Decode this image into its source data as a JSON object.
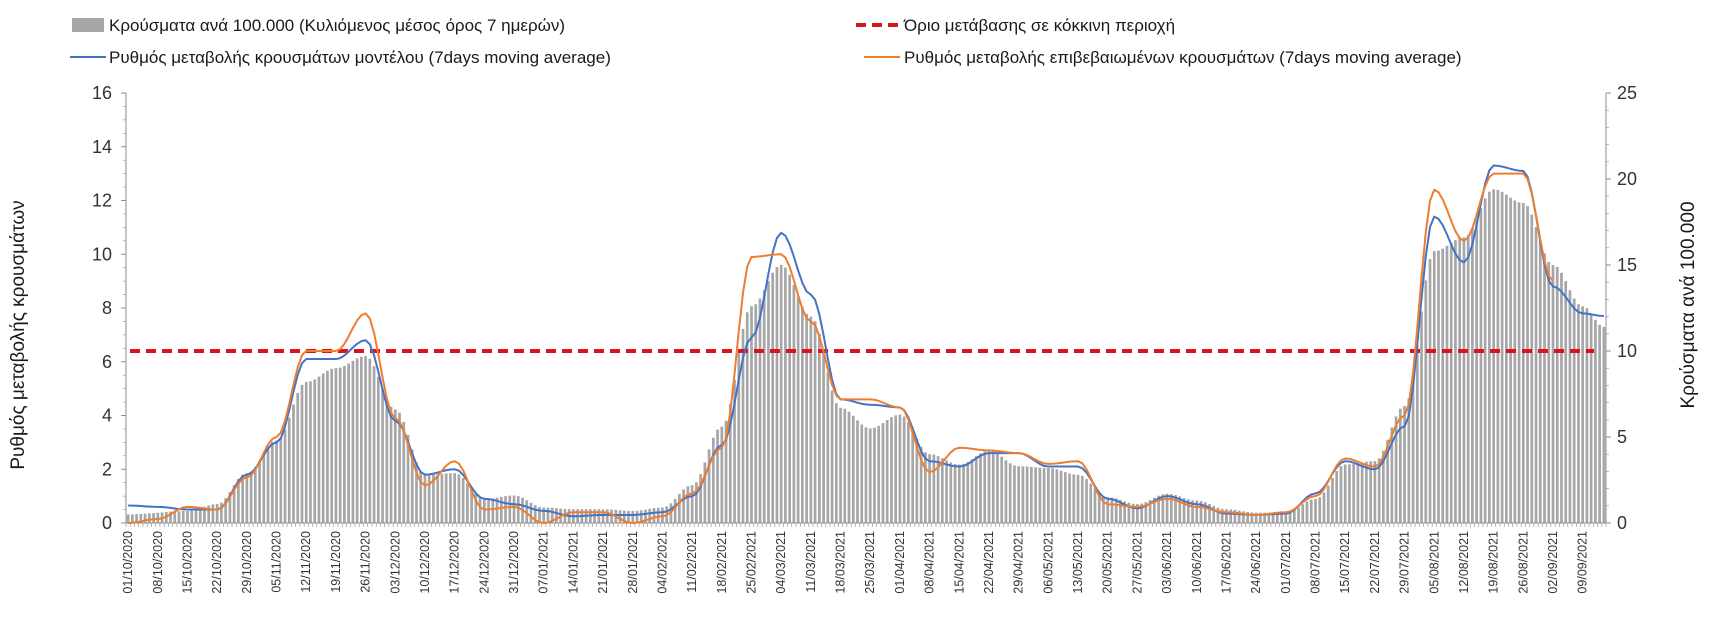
{
  "chart_data": {
    "type": "combo",
    "legend": {
      "placement": "top",
      "entries": [
        {
          "name": "Κρούσματα ανά 100.000 (Κυλιόμενος μέσος όρος 7 ημερών)",
          "kind": "bar",
          "color": "#a6a6a6"
        },
        {
          "name": "Όριο μετάβασης σε κόκκινη περιοχή",
          "kind": "dashed-line",
          "color": "#d9141b"
        },
        {
          "name": "Ρυθμός μεταβολής κρουσμάτων μοντέλου (7days moving average)",
          "kind": "line",
          "color": "#4472c4"
        },
        {
          "name": "Ρυθμός μεταβολής επιβεβαιωμένων κρουσμάτων (7days moving average)",
          "kind": "line",
          "color": "#ed7d31"
        }
      ]
    },
    "y_left": {
      "label": "Ρυθμός μεταβολής κρουσμάτων",
      "min": 0,
      "max": 16,
      "step": 2,
      "ticks": [
        "0",
        "2",
        "4",
        "6",
        "8",
        "10",
        "12",
        "14",
        "16"
      ]
    },
    "y_right": {
      "label": "Κρούσματα ανά 100.000",
      "min": 0,
      "max": 25,
      "step": 5,
      "ticks": [
        "0",
        "5",
        "10",
        "15",
        "20",
        "25"
      ]
    },
    "x": {
      "start": "2020-10-01",
      "end": "2021-09-14",
      "tick_labels": [
        "01/10/2020",
        "08/10/2020",
        "15/10/2020",
        "22/10/2020",
        "29/10/2020",
        "05/11/2020",
        "12/11/2020",
        "19/11/2020",
        "26/11/2020",
        "03/12/2020",
        "10/12/2020",
        "17/12/2020",
        "24/12/2020",
        "31/12/2020",
        "07/01/2021",
        "14/01/2021",
        "21/01/2021",
        "28/01/2021",
        "04/02/2021",
        "11/02/2021",
        "18/02/2021",
        "25/02/2021",
        "04/03/2021",
        "11/03/2021",
        "18/03/2021",
        "25/03/2021",
        "01/04/2021",
        "08/04/2021",
        "15/04/2021",
        "22/04/2021",
        "29/04/2021",
        "06/05/2021",
        "13/05/2021",
        "20/05/2021",
        "27/05/2021",
        "03/06/2021",
        "10/06/2021",
        "17/06/2021",
        "24/06/2021",
        "01/07/2021",
        "08/07/2021",
        "15/07/2021",
        "22/07/2021",
        "29/07/2021",
        "05/08/2021",
        "12/08/2021",
        "19/08/2021",
        "26/08/2021",
        "02/09/2021",
        "09/09/2021"
      ]
    },
    "threshold": {
      "axis": "right",
      "value": 10
    },
    "series": [
      {
        "name": "Κρούσματα ανά 100.000 (Κυλιόμενος μέσος όρος 7 ημερών)",
        "type": "bar",
        "axis": "right",
        "points": [
          [
            "2020-10-01",
            0.5
          ],
          [
            "2020-10-15",
            0.7
          ],
          [
            "2020-10-22",
            1.1
          ],
          [
            "2020-10-29",
            2.9
          ],
          [
            "2020-11-05",
            4.8
          ],
          [
            "2020-11-12",
            8.2
          ],
          [
            "2020-11-19",
            9.0
          ],
          [
            "2020-11-26",
            9.7
          ],
          [
            "2020-12-03",
            6.6
          ],
          [
            "2020-12-10",
            2.8
          ],
          [
            "2020-12-17",
            2.9
          ],
          [
            "2020-12-24",
            1.4
          ],
          [
            "2020-12-31",
            1.6
          ],
          [
            "2021-01-07",
            0.9
          ],
          [
            "2021-01-14",
            0.8
          ],
          [
            "2021-01-21",
            0.8
          ],
          [
            "2021-01-28",
            0.7
          ],
          [
            "2021-02-04",
            0.9
          ],
          [
            "2021-02-11",
            2.2
          ],
          [
            "2021-02-18",
            5.6
          ],
          [
            "2021-02-25",
            12.6
          ],
          [
            "2021-03-04",
            15.0
          ],
          [
            "2021-03-11",
            12.0
          ],
          [
            "2021-03-18",
            6.7
          ],
          [
            "2021-03-25",
            5.5
          ],
          [
            "2021-04-01",
            6.3
          ],
          [
            "2021-04-08",
            4.0
          ],
          [
            "2021-04-15",
            3.4
          ],
          [
            "2021-04-22",
            4.2
          ],
          [
            "2021-04-29",
            3.3
          ],
          [
            "2021-05-06",
            3.2
          ],
          [
            "2021-05-13",
            2.8
          ],
          [
            "2021-05-20",
            1.5
          ],
          [
            "2021-05-27",
            1.1
          ],
          [
            "2021-06-03",
            1.7
          ],
          [
            "2021-06-10",
            1.3
          ],
          [
            "2021-06-17",
            0.8
          ],
          [
            "2021-06-24",
            0.6
          ],
          [
            "2021-07-01",
            0.6
          ],
          [
            "2021-07-08",
            1.4
          ],
          [
            "2021-07-15",
            3.4
          ],
          [
            "2021-07-22",
            3.6
          ],
          [
            "2021-07-29",
            6.8
          ],
          [
            "2021-08-05",
            15.8
          ],
          [
            "2021-08-12",
            16.6
          ],
          [
            "2021-08-19",
            19.4
          ],
          [
            "2021-08-26",
            18.6
          ],
          [
            "2021-09-02",
            15.0
          ],
          [
            "2021-09-09",
            12.6
          ],
          [
            "2021-09-14",
            11.4
          ]
        ]
      },
      {
        "name": "Ρυθμός μεταβολής κρουσμάτων μοντέλου (7days moving average)",
        "type": "line",
        "axis": "left",
        "points": [
          [
            "2020-10-01",
            0.65
          ],
          [
            "2020-10-08",
            0.6
          ],
          [
            "2020-10-15",
            0.5
          ],
          [
            "2020-10-22",
            0.5
          ],
          [
            "2020-10-29",
            1.8
          ],
          [
            "2020-11-05",
            3.0
          ],
          [
            "2020-11-12",
            6.1
          ],
          [
            "2020-11-19",
            6.1
          ],
          [
            "2020-11-26",
            6.8
          ],
          [
            "2020-12-03",
            3.8
          ],
          [
            "2020-12-10",
            1.8
          ],
          [
            "2020-12-17",
            2.0
          ],
          [
            "2020-12-24",
            0.9
          ],
          [
            "2020-12-31",
            0.7
          ],
          [
            "2021-01-07",
            0.45
          ],
          [
            "2021-01-14",
            0.25
          ],
          [
            "2021-01-21",
            0.3
          ],
          [
            "2021-01-28",
            0.3
          ],
          [
            "2021-02-04",
            0.4
          ],
          [
            "2021-02-11",
            1.0
          ],
          [
            "2021-02-18",
            2.9
          ],
          [
            "2021-02-25",
            6.9
          ],
          [
            "2021-03-04",
            10.8
          ],
          [
            "2021-03-11",
            8.5
          ],
          [
            "2021-03-18",
            4.6
          ],
          [
            "2021-03-25",
            4.4
          ],
          [
            "2021-04-01",
            4.3
          ],
          [
            "2021-04-08",
            2.3
          ],
          [
            "2021-04-15",
            2.1
          ],
          [
            "2021-04-22",
            2.6
          ],
          [
            "2021-04-29",
            2.6
          ],
          [
            "2021-05-06",
            2.1
          ],
          [
            "2021-05-13",
            2.1
          ],
          [
            "2021-05-20",
            0.9
          ],
          [
            "2021-05-27",
            0.55
          ],
          [
            "2021-06-03",
            1.0
          ],
          [
            "2021-06-10",
            0.7
          ],
          [
            "2021-06-17",
            0.35
          ],
          [
            "2021-06-24",
            0.3
          ],
          [
            "2021-07-01",
            0.35
          ],
          [
            "2021-07-08",
            1.1
          ],
          [
            "2021-07-15",
            2.3
          ],
          [
            "2021-07-22",
            2.0
          ],
          [
            "2021-07-29",
            3.6
          ],
          [
            "2021-08-05",
            11.4
          ],
          [
            "2021-08-12",
            9.7
          ],
          [
            "2021-08-19",
            13.3
          ],
          [
            "2021-08-26",
            13.1
          ],
          [
            "2021-09-02",
            8.8
          ],
          [
            "2021-09-09",
            7.8
          ],
          [
            "2021-09-14",
            7.7
          ]
        ]
      },
      {
        "name": "Ρυθμός μεταβολής επιβεβαιωμένων κρουσμάτων (7days moving average)",
        "type": "line",
        "axis": "left",
        "points": [
          [
            "2020-10-01",
            0.0
          ],
          [
            "2020-10-08",
            0.15
          ],
          [
            "2020-10-15",
            0.6
          ],
          [
            "2020-10-22",
            0.5
          ],
          [
            "2020-10-29",
            1.7
          ],
          [
            "2020-11-05",
            3.2
          ],
          [
            "2020-11-12",
            6.4
          ],
          [
            "2020-11-19",
            6.4
          ],
          [
            "2020-11-26",
            7.8
          ],
          [
            "2020-12-03",
            3.9
          ],
          [
            "2020-12-10",
            1.4
          ],
          [
            "2020-12-17",
            2.3
          ],
          [
            "2020-12-24",
            0.5
          ],
          [
            "2020-12-31",
            0.6
          ],
          [
            "2021-01-07",
            0.0
          ],
          [
            "2021-01-14",
            0.4
          ],
          [
            "2021-01-21",
            0.4
          ],
          [
            "2021-01-28",
            0.0
          ],
          [
            "2021-02-04",
            0.25
          ],
          [
            "2021-02-11",
            1.1
          ],
          [
            "2021-02-18",
            2.8
          ],
          [
            "2021-02-25",
            9.9
          ],
          [
            "2021-03-04",
            10.0
          ],
          [
            "2021-03-11",
            7.5
          ],
          [
            "2021-03-18",
            4.6
          ],
          [
            "2021-03-25",
            4.6
          ],
          [
            "2021-04-01",
            4.3
          ],
          [
            "2021-04-08",
            1.9
          ],
          [
            "2021-04-15",
            2.8
          ],
          [
            "2021-04-22",
            2.7
          ],
          [
            "2021-04-29",
            2.6
          ],
          [
            "2021-05-06",
            2.2
          ],
          [
            "2021-05-13",
            2.3
          ],
          [
            "2021-05-20",
            0.7
          ],
          [
            "2021-05-27",
            0.6
          ],
          [
            "2021-06-03",
            0.9
          ],
          [
            "2021-06-10",
            0.6
          ],
          [
            "2021-06-17",
            0.4
          ],
          [
            "2021-06-24",
            0.3
          ],
          [
            "2021-07-01",
            0.4
          ],
          [
            "2021-07-08",
            1.0
          ],
          [
            "2021-07-15",
            2.4
          ],
          [
            "2021-07-22",
            2.1
          ],
          [
            "2021-07-29",
            4.0
          ],
          [
            "2021-08-05",
            12.4
          ],
          [
            "2021-08-12",
            10.5
          ],
          [
            "2021-08-19",
            13.0
          ],
          [
            "2021-08-26",
            13.0
          ],
          [
            "2021-09-02",
            9.0
          ]
        ]
      }
    ]
  }
}
